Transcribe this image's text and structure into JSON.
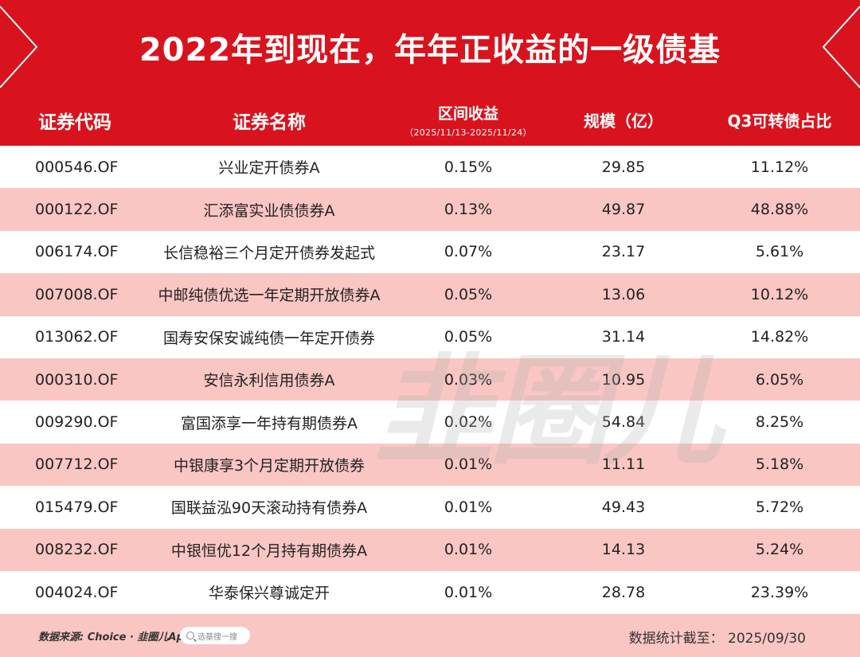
{
  "title": "2022年到现在，年年正收益的一级债基",
  "colors": {
    "brand_red": "#d9131d",
    "stripe_pink": "#f9c6c3"
  },
  "headers": {
    "code": "证券代码",
    "name": "证券名称",
    "return": "区间收益",
    "return_period": "（2025/11/13-2025/11/24）",
    "scale": "规模（亿）",
    "cb_ratio": "Q3可转债占比"
  },
  "rows": [
    {
      "code": "000546.OF",
      "name": "兴业定开债券A",
      "return": "0.15%",
      "scale": "29.85",
      "cb_ratio": "11.12%"
    },
    {
      "code": "000122.OF",
      "name": "汇添富实业债债券A",
      "return": "0.13%",
      "scale": "49.87",
      "cb_ratio": "48.88%"
    },
    {
      "code": "006174.OF",
      "name": "长信稳裕三个月定开债券发起式",
      "return": "0.07%",
      "scale": "23.17",
      "cb_ratio": "5.61%"
    },
    {
      "code": "007008.OF",
      "name": "中邮纯债优选一年定期开放债券A",
      "return": "0.05%",
      "scale": "13.06",
      "cb_ratio": "10.12%"
    },
    {
      "code": "013062.OF",
      "name": "国寿安保安诚纯债一年定开债券",
      "return": "0.05%",
      "scale": "31.14",
      "cb_ratio": "14.82%"
    },
    {
      "code": "000310.OF",
      "name": "安信永利信用债券A",
      "return": "0.03%",
      "scale": "10.95",
      "cb_ratio": "6.05%"
    },
    {
      "code": "009290.OF",
      "name": "富国添享一年持有期债券A",
      "return": "0.02%",
      "scale": "54.84",
      "cb_ratio": "8.25%"
    },
    {
      "code": "007712.OF",
      "name": "中银康享3个月定期开放债券",
      "return": "0.01%",
      "scale": "11.11",
      "cb_ratio": "5.18%"
    },
    {
      "code": "015479.OF",
      "name": "国联益泓90天滚动持有债券A",
      "return": "0.01%",
      "scale": "49.43",
      "cb_ratio": "5.72%"
    },
    {
      "code": "008232.OF",
      "name": "中银恒优12个月持有期债券A",
      "return": "0.01%",
      "scale": "14.13",
      "cb_ratio": "5.24%"
    },
    {
      "code": "004024.OF",
      "name": "华泰保兴尊诚定开",
      "return": "0.01%",
      "scale": "28.78",
      "cb_ratio": "23.39%"
    }
  ],
  "watermark": "韭圈儿",
  "footer": {
    "source": "数据来源: Choice · 韭圈儿App",
    "search_placeholder": "选基搜一搜",
    "stat_date": "数据统计截至：  2025/09/30"
  }
}
